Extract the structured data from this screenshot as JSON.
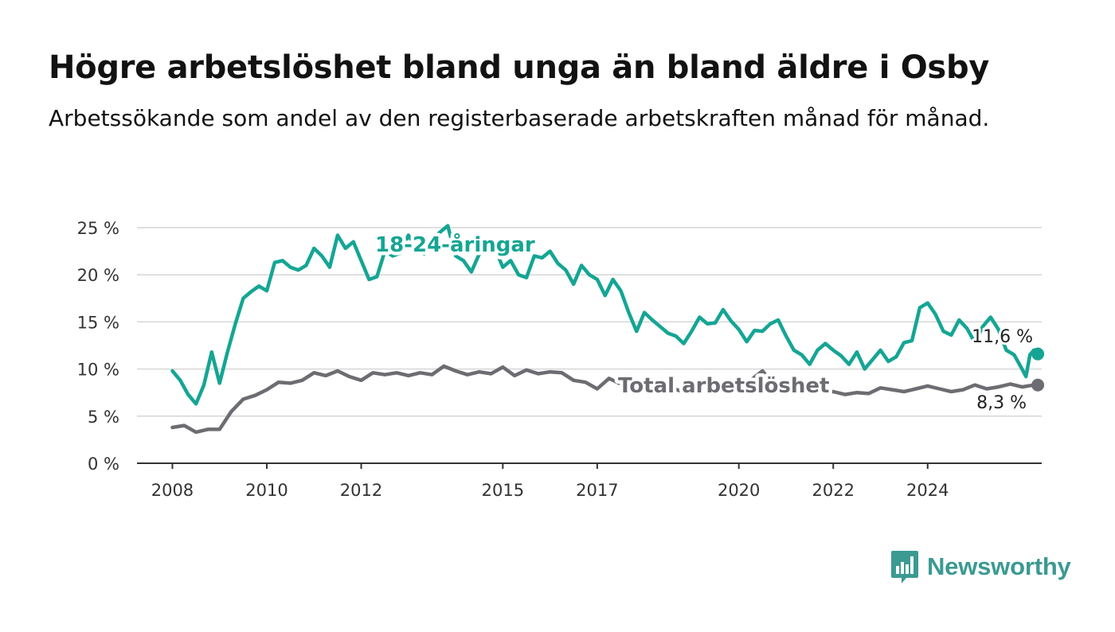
{
  "title": "Högre arbetslöshet bland unga än bland äldre i Osby",
  "subtitle": "Arbetssökande som andel av den registerbaserade arbetskraften månad för månad.",
  "brand": {
    "name": "Newsworthy",
    "logo_icon": "bar-chart-speech-icon",
    "color": "#3b9a92"
  },
  "chart_data": {
    "type": "line",
    "x_ticks": [
      "2008",
      "2010",
      "2012",
      "2015",
      "2017",
      "2020",
      "2022",
      "2024"
    ],
    "y_ticks": [
      "0 %",
      "5 %",
      "10 %",
      "15 %",
      "20 %",
      "25 %"
    ],
    "ylim": [
      0,
      25
    ],
    "xlim": [
      "2007-04",
      "2026-06"
    ],
    "grid": true,
    "series": [
      {
        "name": "18-24-åringar",
        "color": "#15a594",
        "end_label": "11,6 %",
        "points": [
          [
            "2008-01",
            9.8
          ],
          [
            "2008-03",
            8.8
          ],
          [
            "2008-05",
            7.3
          ],
          [
            "2008-07",
            6.3
          ],
          [
            "2008-09",
            8.3
          ],
          [
            "2008-11",
            11.8
          ],
          [
            "2009-01",
            8.5
          ],
          [
            "2009-03",
            11.8
          ],
          [
            "2009-05",
            14.8
          ],
          [
            "2009-07",
            17.5
          ],
          [
            "2009-09",
            18.2
          ],
          [
            "2009-11",
            18.8
          ],
          [
            "2010-01",
            18.3
          ],
          [
            "2010-03",
            21.3
          ],
          [
            "2010-05",
            21.5
          ],
          [
            "2010-07",
            20.8
          ],
          [
            "2010-09",
            20.5
          ],
          [
            "2010-11",
            21.0
          ],
          [
            "2011-01",
            22.8
          ],
          [
            "2011-03",
            22.0
          ],
          [
            "2011-05",
            20.8
          ],
          [
            "2011-07",
            24.2
          ],
          [
            "2011-09",
            22.8
          ],
          [
            "2011-11",
            23.5
          ],
          [
            "2012-01",
            21.5
          ],
          [
            "2012-03",
            19.5
          ],
          [
            "2012-05",
            19.8
          ],
          [
            "2012-07",
            22.5
          ],
          [
            "2012-09",
            22.0
          ],
          [
            "2012-11",
            22.3
          ],
          [
            "2013-01",
            24.2
          ],
          [
            "2013-03",
            22.8
          ],
          [
            "2013-05",
            22.2
          ],
          [
            "2013-07",
            23.8
          ],
          [
            "2013-09",
            24.5
          ],
          [
            "2013-11",
            25.2
          ],
          [
            "2014-01",
            22.0
          ],
          [
            "2014-03",
            21.5
          ],
          [
            "2014-05",
            20.3
          ],
          [
            "2014-07",
            22.2
          ],
          [
            "2014-09",
            22.8
          ],
          [
            "2014-11",
            22.8
          ],
          [
            "2015-01",
            20.8
          ],
          [
            "2015-03",
            21.5
          ],
          [
            "2015-05",
            20.0
          ],
          [
            "2015-07",
            19.7
          ],
          [
            "2015-09",
            22.0
          ],
          [
            "2015-11",
            21.8
          ],
          [
            "2016-01",
            22.5
          ],
          [
            "2016-03",
            21.2
          ],
          [
            "2016-05",
            20.5
          ],
          [
            "2016-07",
            19.0
          ],
          [
            "2016-09",
            21.0
          ],
          [
            "2016-11",
            20.0
          ],
          [
            "2017-01",
            19.5
          ],
          [
            "2017-03",
            17.8
          ],
          [
            "2017-05",
            19.5
          ],
          [
            "2017-07",
            18.3
          ],
          [
            "2017-09",
            16.0
          ],
          [
            "2017-11",
            14.0
          ],
          [
            "2018-01",
            16.0
          ],
          [
            "2018-03",
            15.2
          ],
          [
            "2018-05",
            14.5
          ],
          [
            "2018-07",
            13.8
          ],
          [
            "2018-09",
            13.5
          ],
          [
            "2018-11",
            12.7
          ],
          [
            "2019-01",
            14.0
          ],
          [
            "2019-03",
            15.5
          ],
          [
            "2019-05",
            14.8
          ],
          [
            "2019-07",
            14.9
          ],
          [
            "2019-09",
            16.3
          ],
          [
            "2019-11",
            15.1
          ],
          [
            "2020-01",
            14.2
          ],
          [
            "2020-03",
            12.9
          ],
          [
            "2020-05",
            14.1
          ],
          [
            "2020-07",
            14.0
          ],
          [
            "2020-09",
            14.8
          ],
          [
            "2020-11",
            15.2
          ],
          [
            "2021-01",
            13.5
          ],
          [
            "2021-03",
            12.0
          ],
          [
            "2021-05",
            11.5
          ],
          [
            "2021-07",
            10.5
          ],
          [
            "2021-09",
            12.0
          ],
          [
            "2021-11",
            12.7
          ],
          [
            "2022-01",
            12.0
          ],
          [
            "2022-03",
            11.4
          ],
          [
            "2022-05",
            10.5
          ],
          [
            "2022-07",
            11.8
          ],
          [
            "2022-09",
            10.0
          ],
          [
            "2022-11",
            11.0
          ],
          [
            "2023-01",
            12.0
          ],
          [
            "2023-03",
            10.8
          ],
          [
            "2023-05",
            11.3
          ],
          [
            "2023-07",
            12.8
          ],
          [
            "2023-09",
            13.0
          ],
          [
            "2023-11",
            16.5
          ],
          [
            "2024-01",
            17.0
          ],
          [
            "2024-03",
            15.8
          ],
          [
            "2024-05",
            14.0
          ],
          [
            "2024-07",
            13.6
          ],
          [
            "2024-09",
            15.2
          ],
          [
            "2024-11",
            14.3
          ],
          [
            "2025-01",
            12.8
          ],
          [
            "2025-03",
            14.5
          ],
          [
            "2025-05",
            15.5
          ],
          [
            "2025-07",
            14.2
          ],
          [
            "2025-09",
            12.0
          ],
          [
            "2025-11",
            11.5
          ],
          [
            "2026-01",
            10.0
          ],
          [
            "2026-02",
            9.2
          ],
          [
            "2026-03",
            11.5
          ],
          [
            "2026-04",
            12.0
          ],
          [
            "2026-05",
            11.6
          ]
        ]
      },
      {
        "name": "Total arbetslöshet",
        "color": "#6c6c72",
        "end_label": "8,3 %",
        "points": [
          [
            "2008-01",
            3.8
          ],
          [
            "2008-04",
            4.0
          ],
          [
            "2008-07",
            3.3
          ],
          [
            "2008-10",
            3.6
          ],
          [
            "2009-01",
            3.6
          ],
          [
            "2009-04",
            5.5
          ],
          [
            "2009-07",
            6.8
          ],
          [
            "2009-10",
            7.2
          ],
          [
            "2010-01",
            7.8
          ],
          [
            "2010-04",
            8.6
          ],
          [
            "2010-07",
            8.5
          ],
          [
            "2010-10",
            8.8
          ],
          [
            "2011-01",
            9.6
          ],
          [
            "2011-04",
            9.3
          ],
          [
            "2011-07",
            9.8
          ],
          [
            "2011-10",
            9.2
          ],
          [
            "2012-01",
            8.8
          ],
          [
            "2012-04",
            9.6
          ],
          [
            "2012-07",
            9.4
          ],
          [
            "2012-10",
            9.6
          ],
          [
            "2013-01",
            9.3
          ],
          [
            "2013-04",
            9.6
          ],
          [
            "2013-07",
            9.4
          ],
          [
            "2013-10",
            10.3
          ],
          [
            "2014-01",
            9.8
          ],
          [
            "2014-04",
            9.4
          ],
          [
            "2014-07",
            9.7
          ],
          [
            "2014-10",
            9.5
          ],
          [
            "2015-01",
            10.2
          ],
          [
            "2015-04",
            9.3
          ],
          [
            "2015-07",
            9.9
          ],
          [
            "2015-10",
            9.5
          ],
          [
            "2016-01",
            9.7
          ],
          [
            "2016-04",
            9.6
          ],
          [
            "2016-07",
            8.8
          ],
          [
            "2016-10",
            8.6
          ],
          [
            "2017-01",
            7.9
          ],
          [
            "2017-04",
            9.0
          ],
          [
            "2017-07",
            8.4
          ],
          [
            "2017-10",
            8.3
          ],
          [
            "2018-01",
            8.4
          ],
          [
            "2018-04",
            8.0
          ],
          [
            "2018-07",
            8.1
          ],
          [
            "2018-10",
            7.7
          ],
          [
            "2019-01",
            7.6
          ],
          [
            "2019-04",
            7.9
          ],
          [
            "2019-07",
            8.5
          ],
          [
            "2019-10",
            8.0
          ],
          [
            "2020-01",
            7.8
          ],
          [
            "2020-04",
            8.8
          ],
          [
            "2020-07",
            9.8
          ],
          [
            "2020-10",
            8.3
          ],
          [
            "2021-01",
            8.5
          ],
          [
            "2021-04",
            8.8
          ],
          [
            "2021-07",
            8.0
          ],
          [
            "2021-10",
            7.5
          ],
          [
            "2022-01",
            7.6
          ],
          [
            "2022-04",
            7.3
          ],
          [
            "2022-07",
            7.5
          ],
          [
            "2022-10",
            7.4
          ],
          [
            "2023-01",
            8.0
          ],
          [
            "2023-04",
            7.8
          ],
          [
            "2023-07",
            7.6
          ],
          [
            "2023-10",
            7.9
          ],
          [
            "2024-01",
            8.2
          ],
          [
            "2024-04",
            7.9
          ],
          [
            "2024-07",
            7.6
          ],
          [
            "2024-10",
            7.8
          ],
          [
            "2025-01",
            8.3
          ],
          [
            "2025-04",
            7.9
          ],
          [
            "2025-07",
            8.1
          ],
          [
            "2025-10",
            8.4
          ],
          [
            "2026-01",
            8.1
          ],
          [
            "2026-04",
            8.3
          ],
          [
            "2026-05",
            8.3
          ]
        ]
      }
    ]
  }
}
